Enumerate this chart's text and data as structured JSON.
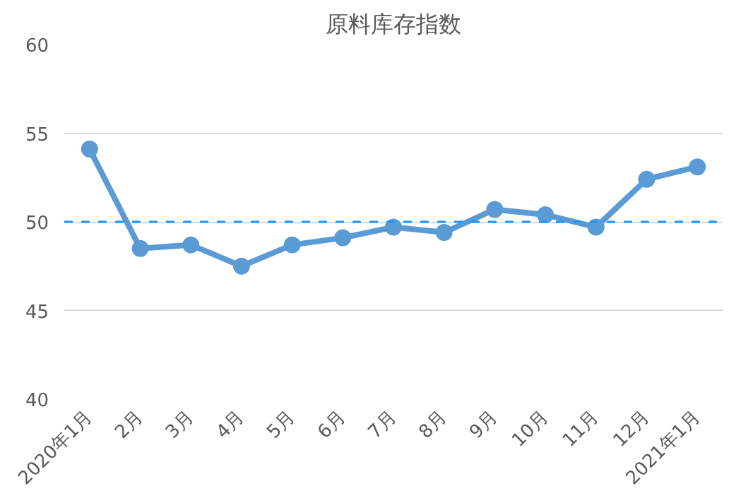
{
  "chart_data": {
    "type": "line",
    "title": "原料库存指数",
    "categories": [
      "2020年1月",
      "2月",
      "3月",
      "4月",
      "5月",
      "6月",
      "7月",
      "8月",
      "9月",
      "10月",
      "11月",
      "12月",
      "2021年1月"
    ],
    "series": [
      {
        "color": "#5b9bd5",
        "values": [
          54.1,
          48.5,
          48.7,
          47.5,
          48.7,
          49.1,
          49.7,
          49.4,
          50.7,
          50.4,
          49.7,
          52.4,
          53.1
        ]
      }
    ],
    "ylim": [
      40,
      60
    ],
    "yticks": [
      40,
      45,
      50,
      55,
      60
    ],
    "grid": "y",
    "marker": "circle",
    "line_style": "solid",
    "ref_lines": [
      {
        "axis": "y",
        "value": 50,
        "color": "#2196f3",
        "line_style": "dashed"
      }
    ]
  }
}
